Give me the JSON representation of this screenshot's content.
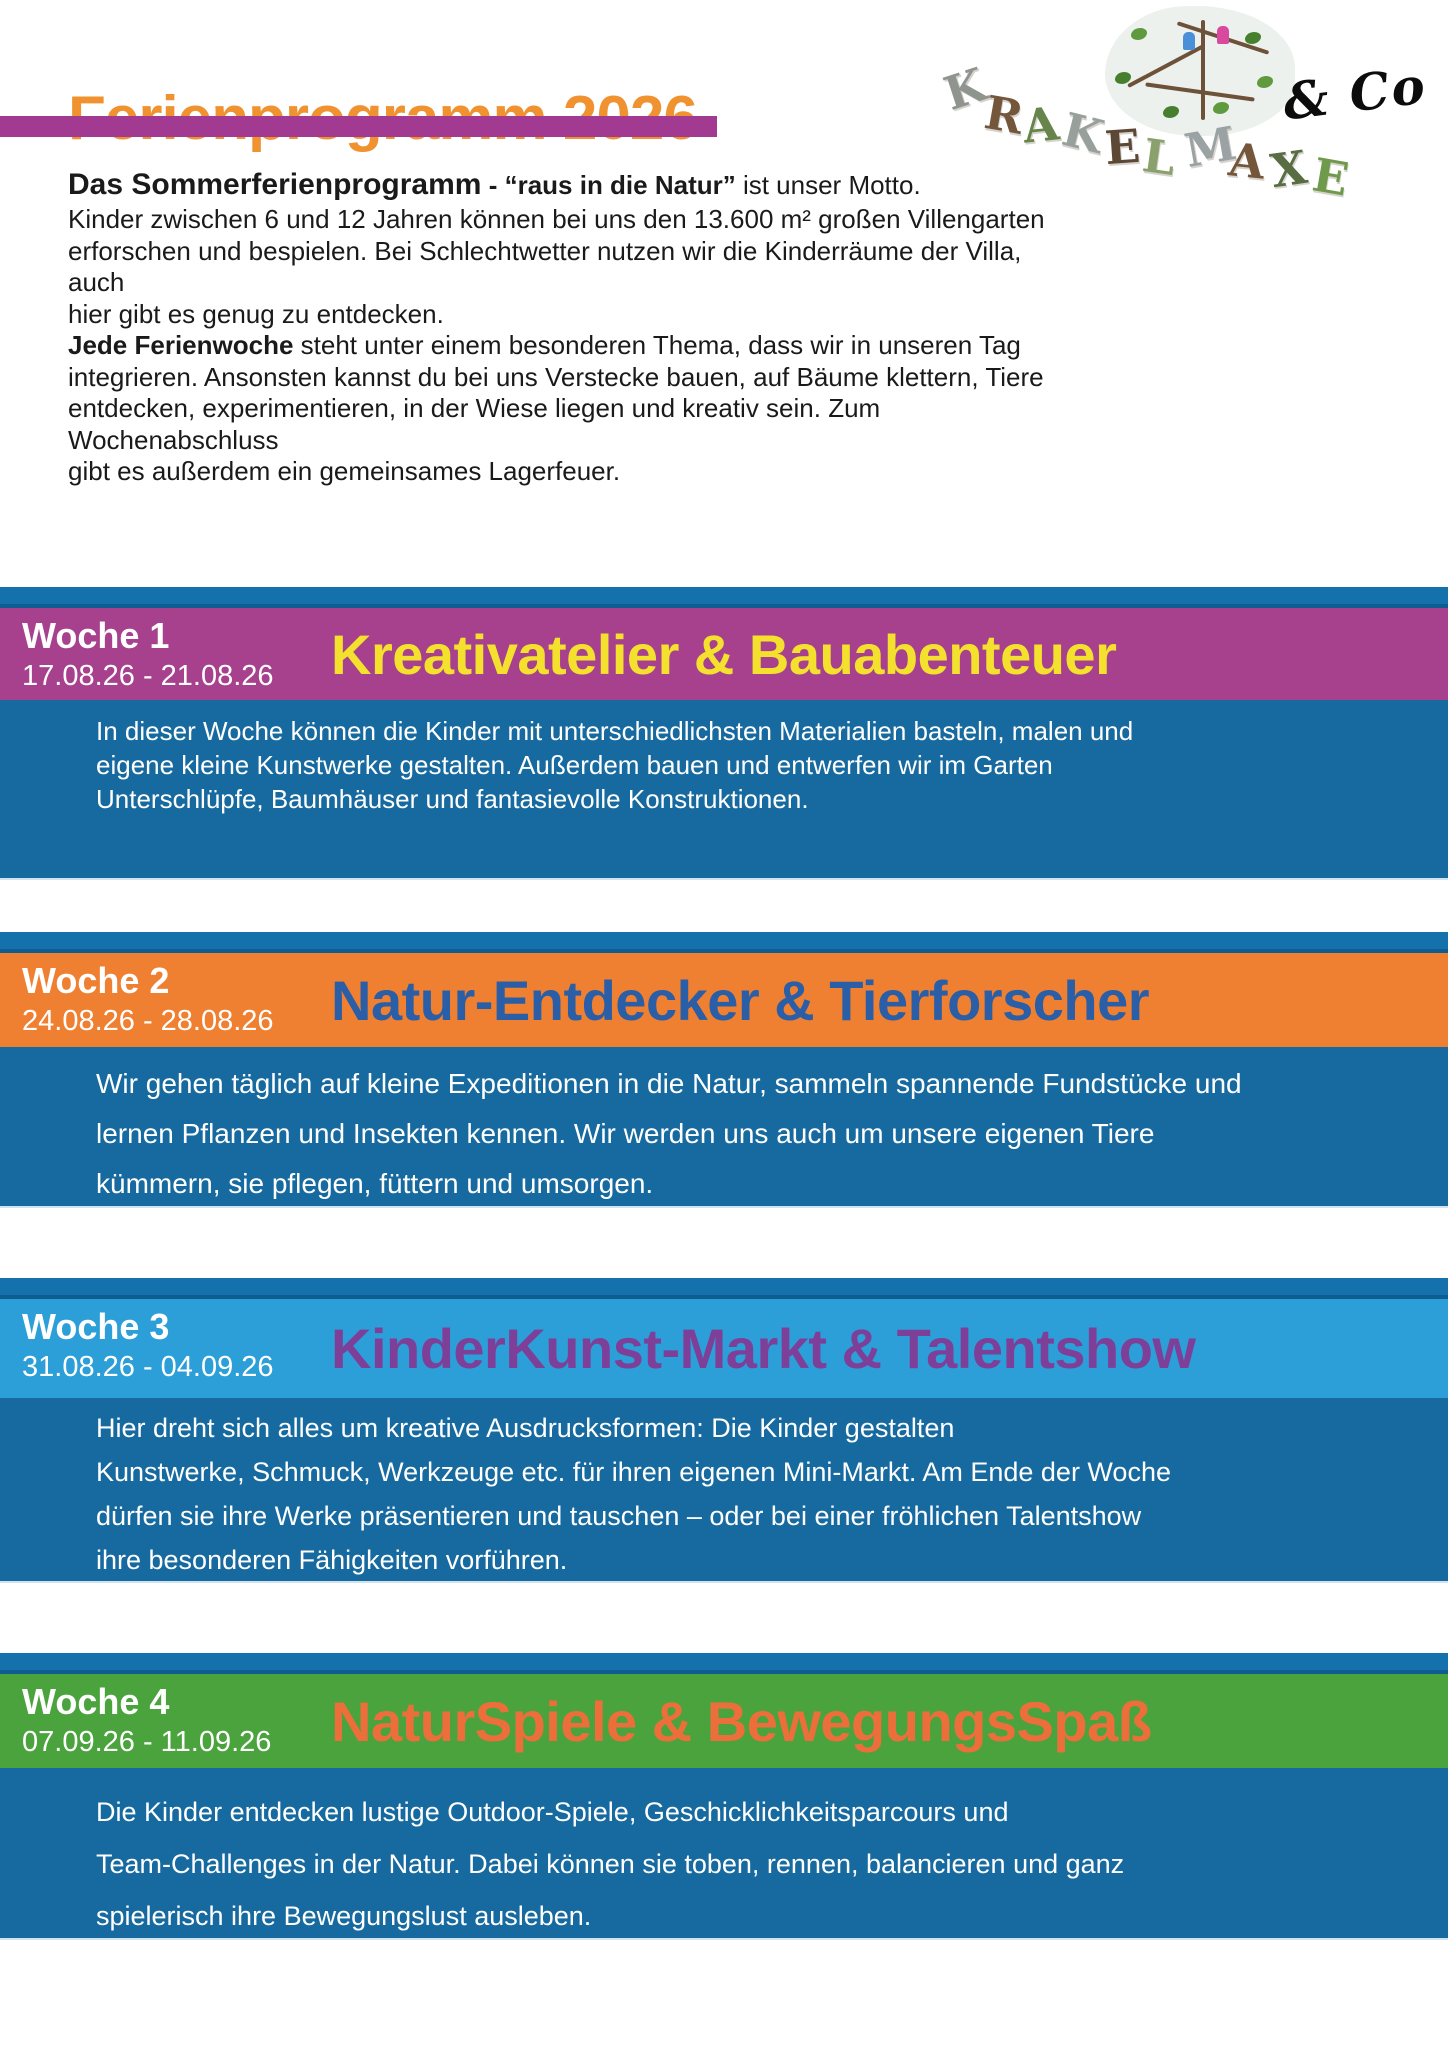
{
  "header": {
    "title": "Ferienprogramm 2026",
    "title_color": "#f0922f",
    "accent_bar_color": "#a33a92",
    "logo": {
      "text": "KRAKELMAXE",
      "suffix": "& Co"
    }
  },
  "intro": {
    "lead_bold": "Das Sommerferienprogramm",
    "lead_sep": " - ",
    "lead_quote": "“raus in die Natur”",
    "lead_rest": " ist unser Motto.",
    "para1_lines": [
      "Kinder zwischen 6 und 12 Jahren können bei uns den 13.600 m² großen Villengarten",
      "erforschen und bespielen. Bei Schlechtwetter nutzen wir die Kinderräume der Villa, auch",
      "hier gibt es genug zu entdecken."
    ],
    "para2_bold": "Jede Ferienwoche",
    "para2_first_rest": " steht unter einem besonderen Thema, dass wir in unseren Tag",
    "para2_lines": [
      "integrieren. Ansonsten kannst du bei uns Verstecke bauen, auf Bäume klettern, Tiere",
      "entdecken, experimentieren, in der Wiese liegen und kreativ sein. Zum Wochenabschluss",
      "gibt es außerdem ein gemeinsames Lagerfeuer."
    ]
  },
  "colors": {
    "strip_blue": "#1571ac",
    "strip_blue_dark": "#0d5d92",
    "panel_blue": "#176a9f",
    "text_on_panel": "#ffffff"
  },
  "weeks": [
    {
      "label": "Woche 1",
      "dates": "17.08.26 - 21.08.26",
      "title": "Kreativatelier & Bauabenteuer",
      "band_color": "#a7418e",
      "title_color": "#f4e12d",
      "description_lines": [
        "In dieser Woche können die Kinder mit unterschiedlichsten Materialien basteln, malen und",
        "eigene kleine Kunstwerke gestalten. Außerdem bauen und entwerfen wir im Garten",
        "Unterschlüpfe, Baumhäuser und fantasievolle Konstruktionen."
      ]
    },
    {
      "label": "Woche 2",
      "dates": "24.08.26 - 28.08.26",
      "title": "Natur-Entdecker & Tierforscher",
      "band_color": "#f08031",
      "title_color": "#2a5ea6",
      "description_lines": [
        "Wir gehen täglich auf kleine Expeditionen in die Natur, sammeln spannende Fundstücke und",
        "lernen Pflanzen und Insekten kennen. Wir werden uns auch um unsere eigenen Tiere",
        "kümmern, sie pflegen, füttern und umsorgen."
      ]
    },
    {
      "label": "Woche 3",
      "dates": "31.08.26 - 04.09.26",
      "title": "KinderKunst-Markt & Talentshow",
      "band_color": "#2c9fd8",
      "title_color": "#7e3f99",
      "description_lines": [
        "Hier dreht sich alles um kreative Ausdrucksformen: Die Kinder gestalten",
        "Kunstwerke, Schmuck, Werkzeuge etc. für ihren eigenen Mini-Markt. Am Ende der Woche",
        "dürfen sie ihre Werke präsentieren und tauschen – oder bei einer fröhlichen Talentshow",
        "ihre besonderen Fähigkeiten vorführen."
      ]
    },
    {
      "label": "Woche 4",
      "dates": "07.09.26 - 11.09.26",
      "title": "NaturSpiele & BewegungsSpaß",
      "band_color": "#4aa33c",
      "title_color": "#ec6f3b",
      "description_lines": [
        "Die Kinder entdecken lustige Outdoor-Spiele, Geschicklichkeitsparcours und",
        "Team-Challenges in der Natur. Dabei können sie toben, rennen, balancieren und ganz",
        "spielerisch ihre Bewegungslust ausleben."
      ]
    }
  ]
}
